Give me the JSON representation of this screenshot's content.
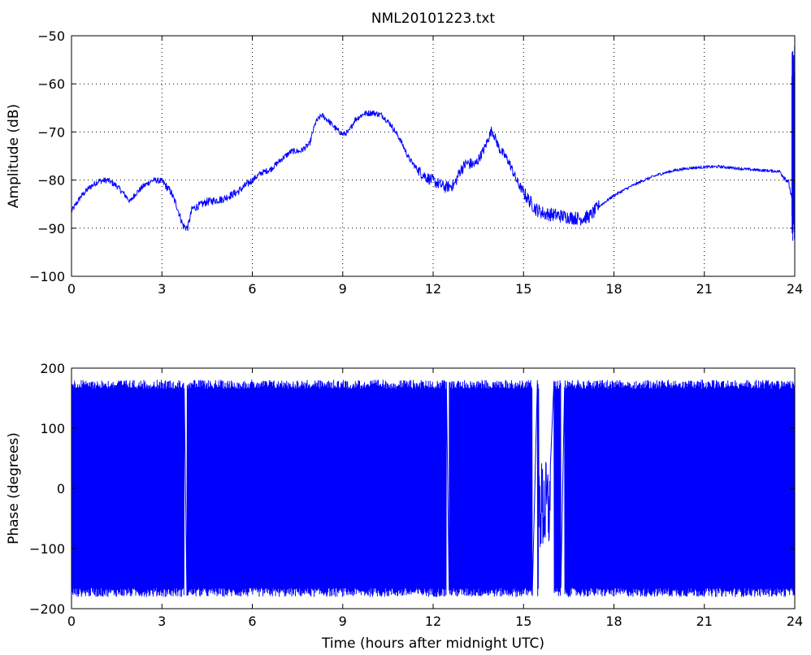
{
  "figure": {
    "title": "NML20101223.txt",
    "background": "#ffffff",
    "series_color": "#0000ff"
  },
  "chart_data": [
    {
      "type": "line",
      "title": "NML20101223.txt",
      "xlabel": "",
      "ylabel": "Amplitude (dB)",
      "xlim": [
        0,
        24
      ],
      "ylim": [
        -100,
        -50
      ],
      "xticks": [
        0,
        3,
        6,
        9,
        12,
        15,
        18,
        21,
        24
      ],
      "yticks": [
        -100,
        -90,
        -80,
        -70,
        -60,
        -50
      ],
      "grid": true,
      "series": [
        {
          "x": [
            0,
            0.3,
            0.6,
            0.9,
            1.2,
            1.5,
            1.8,
            1.95,
            2.1,
            2.4,
            2.7,
            3.0,
            3.3,
            3.5,
            3.7,
            3.85,
            4.0,
            4.5,
            5.0,
            5.5,
            6.0,
            6.3,
            6.6,
            7.0,
            7.3,
            7.6,
            7.9,
            8.1,
            8.3,
            8.5,
            8.8,
            9.0,
            9.2,
            9.4,
            9.7,
            10.0,
            10.3,
            10.6,
            10.9,
            11.2,
            11.5,
            11.8,
            12.1,
            12.4,
            12.7,
            12.9,
            13.1,
            13.4,
            13.7,
            13.95,
            14.2,
            14.5,
            14.8,
            15.1,
            15.4,
            15.7,
            16.0,
            16.3,
            16.6,
            16.9,
            17.2,
            17.5,
            18.0,
            18.5,
            19.0,
            19.5,
            20.0,
            20.5,
            21.0,
            21.5,
            22.0,
            22.5,
            23.0,
            23.5,
            23.8,
            23.95
          ],
          "y": [
            -86.5,
            -83.5,
            -81.5,
            -80.2,
            -80.0,
            -81.2,
            -83.3,
            -84.5,
            -83.0,
            -81.2,
            -80.0,
            -80.2,
            -82.5,
            -85.5,
            -89.5,
            -90.0,
            -86.0,
            -84.5,
            -84.0,
            -82.5,
            -80.0,
            -78.5,
            -77.8,
            -75.5,
            -74.0,
            -74.0,
            -72.5,
            -68.0,
            -66.5,
            -67.5,
            -69.5,
            -70.5,
            -70.0,
            -67.5,
            -66.2,
            -66.0,
            -66.5,
            -68.5,
            -71.5,
            -75.5,
            -78.0,
            -79.5,
            -80.5,
            -81.5,
            -81.0,
            -78.0,
            -76.5,
            -76.8,
            -73.5,
            -69.5,
            -73.5,
            -76.0,
            -80.5,
            -83.5,
            -86.0,
            -87.0,
            -87.2,
            -87.5,
            -87.8,
            -88.0,
            -87.5,
            -85.5,
            -83.2,
            -81.5,
            -80.0,
            -78.8,
            -78.0,
            -77.5,
            -77.3,
            -77.2,
            -77.5,
            -77.8,
            -78.0,
            -78.2,
            -80.5,
            -85.5
          ],
          "spike_at_end": {
            "x": 24.0,
            "ymin": -93,
            "ymax": -52
          }
        }
      ]
    },
    {
      "type": "line",
      "title": "",
      "xlabel": "Time (hours after midnight UTC)",
      "ylabel": "Phase (degrees)",
      "xlim": [
        0,
        24
      ],
      "ylim": [
        -200,
        200
      ],
      "xticks": [
        0,
        3,
        6,
        9,
        12,
        15,
        18,
        21,
        24
      ],
      "yticks": [
        -200,
        -100,
        0,
        100,
        200
      ],
      "grid": false,
      "series": [
        {
          "description_range": [
            -180,
            180
          ],
          "oscillation": "wrapped phase cycling between -180 and 180 degrees throughout 0-24 h",
          "gaps": [
            [
              3.75,
              3.82
            ],
            [
              12.45,
              12.52
            ],
            [
              15.3,
              15.45
            ],
            [
              15.9,
              16.0
            ],
            [
              16.25,
              16.35
            ]
          ]
        }
      ]
    }
  ]
}
